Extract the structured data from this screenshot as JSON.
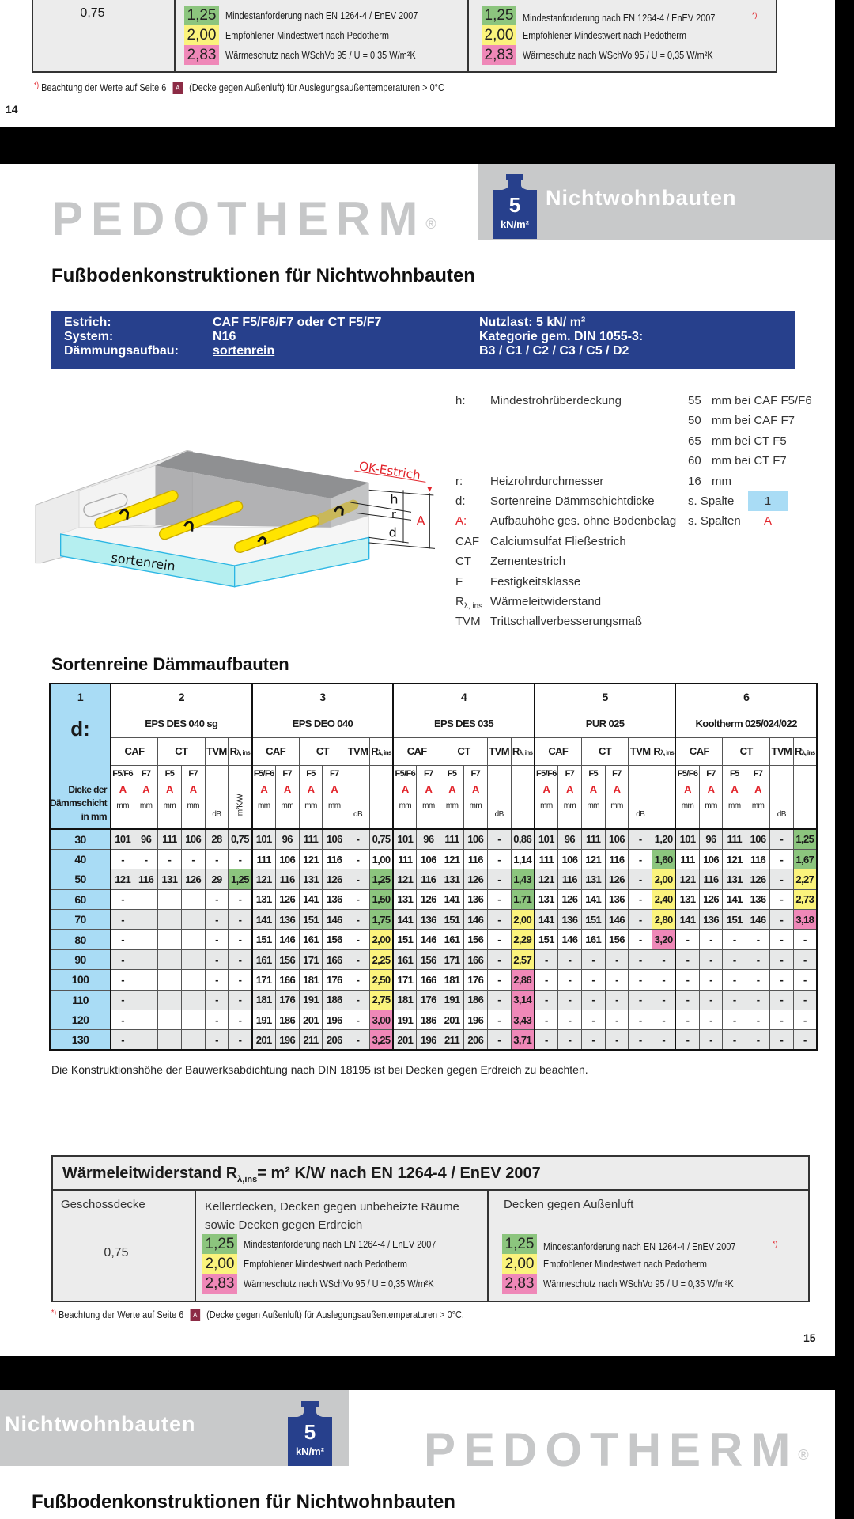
{
  "colors": {
    "min": "#8cc57e",
    "rec": "#fbf37c",
    "wschv": "#ef88b8",
    "col1": "#a9dcf5",
    "spec_box": "#27408c",
    "category_box": "#c8c9ca",
    "badge": "#8c2b45"
  },
  "page14": {
    "geschossdecke_value": "0,75",
    "middle_legend": [
      {
        "value": "1,25",
        "label": "Mindestanforderung nach EN 1264-4 / EnEV 2007",
        "level": "min"
      },
      {
        "value": "2,00",
        "label": "Empfohlener Mindestwert nach Pedotherm",
        "level": "rec"
      },
      {
        "value": "2,83",
        "label": "Wärmeschutz nach WSchVo 95 / U = 0,35 W/m²K",
        "level": "wschv"
      }
    ],
    "right_legend": [
      {
        "value": "1,25",
        "label": "Mindestanforderung nach EN 1264-4 / EnEV 2007",
        "marker": "*)",
        "level": "min"
      },
      {
        "value": "2,00",
        "label": "Empfohlener Mindestwert nach Pedotherm",
        "level": "rec"
      },
      {
        "value": "2,83",
        "label": "Wärmeschutz nach WSchVo 95 / U = 0,35 W/m²K",
        "level": "wschv"
      }
    ],
    "footnote": {
      "marker": "*)",
      "text1": "Beachtung der Werte auf Seite 6",
      "badge": "A",
      "text2": "(Decke gegen Außenluft) für Auslegungsaußentemperaturen > 0°C"
    },
    "page_number": "14"
  },
  "page15": {
    "header": {
      "brand": "PEDOTHERM",
      "registered": "®",
      "load_value": "5",
      "load_unit": "kN/m²",
      "category": "Nichtwohnbauten"
    },
    "title": "Fußbodenkonstruktionen für Nichtwohnbauten",
    "spec": {
      "estrich_label": "Estrich:",
      "estrich_value": "CAF F5/F6/F7 oder CT F5/F7",
      "system_label": "System:",
      "system_value": "N16",
      "daemmung_label": "Dämmungsaufbau:",
      "daemmung_value": "sortenrein",
      "nutzlast": "Nutzlast: 5 kN/ m²",
      "kategorie": "Kategorie gem. DIN 1055-3:",
      "kategorie_value": "B3 / C1 / C2 / C3 / C5 / D2"
    },
    "diagram": {
      "ok_estrich": "OK-Estrich",
      "h": "h",
      "r": "r",
      "d": "d",
      "A": "A",
      "insulation": "sortenrein"
    },
    "legend": [
      {
        "key": "h:",
        "text": "Mindestrohrüberdeckung",
        "num": "55",
        "unit": "mm bei CAF F5/F6"
      },
      {
        "key": "",
        "text": "",
        "num": "50",
        "unit": "mm bei CAF F7"
      },
      {
        "key": "",
        "text": "",
        "num": "65",
        "unit": "mm bei CT F5"
      },
      {
        "key": "",
        "text": "",
        "num": "60",
        "unit": "mm bei CT F7"
      },
      {
        "key": "r:",
        "text": "Heizrohrdurchmesser",
        "num": "16",
        "unit": "mm"
      },
      {
        "key": "d:",
        "text": "Sortenreine Dämmschichtdicke",
        "num": "s. Spalte",
        "box": "1"
      },
      {
        "key": "A:",
        "text": "Aufbauhöhe ges. ohne Bodenbelag",
        "num": "s. Spalten",
        "red_value": "A",
        "red_key": true
      },
      {
        "key": "CAF",
        "text": "Calciumsulfat Fließestrich"
      },
      {
        "key": "CT",
        "text": "Zementestrich"
      },
      {
        "key": "F",
        "text": "Festigkeitsklasse"
      },
      {
        "key": "R",
        "key_sub": "λ, ins",
        "text": "Wärmeleitwiderstand"
      },
      {
        "key": "TVM",
        "text": "Trittschallverbesserungsmaß"
      }
    ],
    "section_title": "Sortenreine Dämmaufbauten",
    "table": {
      "col1_number": "1",
      "col1_symbol": "d:",
      "col1_label": "Dicke der Dämmschicht in mm",
      "sub_headers": {
        "caf": "CAF",
        "ct": "CT",
        "tvm": "TVM",
        "r": "R",
        "r_sub": "λ, ins"
      },
      "classes": [
        "F5/F6",
        "F7",
        "F5",
        "F7"
      ],
      "a_label": "A",
      "unit_mm": "mm",
      "unit_db": "dB",
      "groups": [
        {
          "number": "2",
          "name": "EPS DES 040 sg",
          "r_unit": "m²K/W"
        },
        {
          "number": "3",
          "name": "EPS DEO 040"
        },
        {
          "number": "4",
          "name": "EPS DES 035"
        },
        {
          "number": "5",
          "name": "PUR 025"
        },
        {
          "number": "6",
          "name": "Kooltherm 025/024/022"
        }
      ],
      "rows": [
        {
          "d": "30",
          "cells": [
            "101",
            "96",
            "111",
            "106",
            "28",
            "0,75",
            "101",
            "96",
            "111",
            "106",
            "-",
            "0,75",
            "101",
            "96",
            "111",
            "106",
            "-",
            "0,86",
            "101",
            "96",
            "111",
            "106",
            "-",
            "1,20",
            "101",
            "96",
            "111",
            "106",
            "-",
            "1,25"
          ],
          "r_levels": [
            "",
            "",
            "",
            "",
            "min"
          ]
        },
        {
          "d": "40",
          "cells": [
            "-",
            "-",
            "-",
            "-",
            "-",
            "-",
            "111",
            "106",
            "121",
            "116",
            "-",
            "1,00",
            "111",
            "106",
            "121",
            "116",
            "-",
            "1,14",
            "111",
            "106",
            "121",
            "116",
            "-",
            "1,60",
            "111",
            "106",
            "121",
            "116",
            "-",
            "1,67"
          ],
          "r_levels": [
            "",
            "",
            "",
            "min",
            "min"
          ]
        },
        {
          "d": "50",
          "cells": [
            "121",
            "116",
            "131",
            "126",
            "29",
            "1,25",
            "121",
            "116",
            "131",
            "126",
            "-",
            "1,25",
            "121",
            "116",
            "131",
            "126",
            "-",
            "1,43",
            "121",
            "116",
            "131",
            "126",
            "-",
            "2,00",
            "121",
            "116",
            "131",
            "126",
            "-",
            "2,27"
          ],
          "r_levels": [
            "min",
            "min",
            "min",
            "rec",
            "rec"
          ]
        },
        {
          "d": "60",
          "cells": [
            "-",
            "",
            "",
            "",
            "-",
            "-",
            "131",
            "126",
            "141",
            "136",
            "-",
            "1,50",
            "131",
            "126",
            "141",
            "136",
            "-",
            "1,71",
            "131",
            "126",
            "141",
            "136",
            "-",
            "2,40",
            "131",
            "126",
            "141",
            "136",
            "-",
            "2,73"
          ],
          "r_levels": [
            "",
            "min",
            "min",
            "rec",
            "rec"
          ]
        },
        {
          "d": "70",
          "cells": [
            "-",
            "",
            "",
            "",
            "-",
            "-",
            "141",
            "136",
            "151",
            "146",
            "-",
            "1,75",
            "141",
            "136",
            "151",
            "146",
            "-",
            "2,00",
            "141",
            "136",
            "151",
            "146",
            "-",
            "2,80",
            "141",
            "136",
            "151",
            "146",
            "-",
            "3,18"
          ],
          "r_levels": [
            "",
            "min",
            "rec",
            "rec",
            "wschv"
          ]
        },
        {
          "d": "80",
          "cells": [
            "-",
            "",
            "",
            "",
            "-",
            "-",
            "151",
            "146",
            "161",
            "156",
            "-",
            "2,00",
            "151",
            "146",
            "161",
            "156",
            "-",
            "2,29",
            "151",
            "146",
            "161",
            "156",
            "-",
            "3,20",
            "-",
            "-",
            "-",
            "-",
            "-",
            "-"
          ],
          "r_levels": [
            "",
            "rec",
            "rec",
            "wschv",
            ""
          ]
        },
        {
          "d": "90",
          "cells": [
            "-",
            "",
            "",
            "",
            "-",
            "-",
            "161",
            "156",
            "171",
            "166",
            "-",
            "2,25",
            "161",
            "156",
            "171",
            "166",
            "-",
            "2,57",
            "-",
            "-",
            "-",
            "-",
            "-",
            "-",
            "-",
            "-",
            "-",
            "-",
            "-",
            "-"
          ],
          "r_levels": [
            "",
            "rec",
            "rec",
            "",
            ""
          ]
        },
        {
          "d": "100",
          "cells": [
            "-",
            "",
            "",
            "",
            "-",
            "-",
            "171",
            "166",
            "181",
            "176",
            "-",
            "2,50",
            "171",
            "166",
            "181",
            "176",
            "-",
            "2,86",
            "-",
            "-",
            "-",
            "-",
            "-",
            "-",
            "-",
            "-",
            "-",
            "-",
            "-",
            "-"
          ],
          "r_levels": [
            "",
            "rec",
            "wschv",
            "",
            ""
          ]
        },
        {
          "d": "110",
          "cells": [
            "-",
            "",
            "",
            "",
            "-",
            "-",
            "181",
            "176",
            "191",
            "186",
            "-",
            "2,75",
            "181",
            "176",
            "191",
            "186",
            "-",
            "3,14",
            "-",
            "-",
            "-",
            "-",
            "-",
            "-",
            "-",
            "-",
            "-",
            "-",
            "-",
            "-"
          ],
          "r_levels": [
            "",
            "rec",
            "wschv",
            "",
            ""
          ]
        },
        {
          "d": "120",
          "cells": [
            "-",
            "",
            "",
            "",
            "-",
            "-",
            "191",
            "186",
            "201",
            "196",
            "-",
            "3,00",
            "191",
            "186",
            "201",
            "196",
            "-",
            "3,43",
            "-",
            "-",
            "-",
            "-",
            "-",
            "-",
            "-",
            "-",
            "-",
            "-",
            "-",
            "-"
          ],
          "r_levels": [
            "",
            "wschv",
            "wschv",
            "",
            ""
          ]
        },
        {
          "d": "130",
          "cells": [
            "-",
            "",
            "",
            "",
            "-",
            "-",
            "201",
            "196",
            "211",
            "206",
            "-",
            "3,25",
            "201",
            "196",
            "211",
            "206",
            "-",
            "3,71",
            "-",
            "-",
            "-",
            "-",
            "-",
            "-",
            "-",
            "-",
            "-",
            "-",
            "-",
            "-"
          ],
          "r_levels": [
            "",
            "wschv",
            "wschv",
            "",
            ""
          ]
        }
      ]
    },
    "table_note": "Die Konstruktionshöhe der Bauwerksabdichtung nach DIN 18195 ist bei Decken gegen Erdreich zu beachten.",
    "rins_box": {
      "title": "Wärmeleitwiderstand R",
      "title_sub": "λ,ins",
      "title_rest": "= m² K/W nach EN 1264-4 / EnEV 2007",
      "col1_header": "Geschossdecke",
      "col1_value": "0,75",
      "col2_header_line1": "Kellerdecken, Decken gegen unbeheizte Räume",
      "col2_header_line2": "sowie Decken gegen Erdreich",
      "col3_header": "Decken gegen Außenluft",
      "middle_legend": [
        {
          "value": "1,25",
          "label": "Mindestanforderung nach EN 1264-4 / EnEV 2007",
          "level": "min"
        },
        {
          "value": "2,00",
          "label": "Empfohlener Mindestwert nach Pedotherm",
          "level": "rec"
        },
        {
          "value": "2,83",
          "label": "Wärmeschutz nach WSchVo 95 / U = 0,35 W/m²K",
          "level": "wschv"
        }
      ],
      "right_legend": [
        {
          "value": "1,25",
          "label": "Mindestanforderung nach EN 1264-4 / EnEV 2007",
          "marker": "*)",
          "level": "min"
        },
        {
          "value": "2,00",
          "label": "Empfohlener Mindestwert nach Pedotherm",
          "level": "rec"
        },
        {
          "value": "2,83",
          "label": "Wärmeschutz nach WSchVo 95 / U = 0,35 W/m²K",
          "level": "wschv"
        }
      ]
    },
    "footnote": {
      "marker": "*)",
      "text1": "Beachtung der Werte auf Seite 6",
      "badge": "A",
      "text2": "(Decke gegen Außenluft) für Auslegungsaußentemperaturen > 0°C."
    },
    "page_number": "15"
  },
  "page16": {
    "header": {
      "brand": "PEDOTHERM",
      "registered": "®",
      "load_value": "5",
      "load_unit": "kN/m²",
      "category": "Nichtwohnbauten"
    },
    "title": "Fußbodenkonstruktionen für Nichtwohnbauten"
  }
}
